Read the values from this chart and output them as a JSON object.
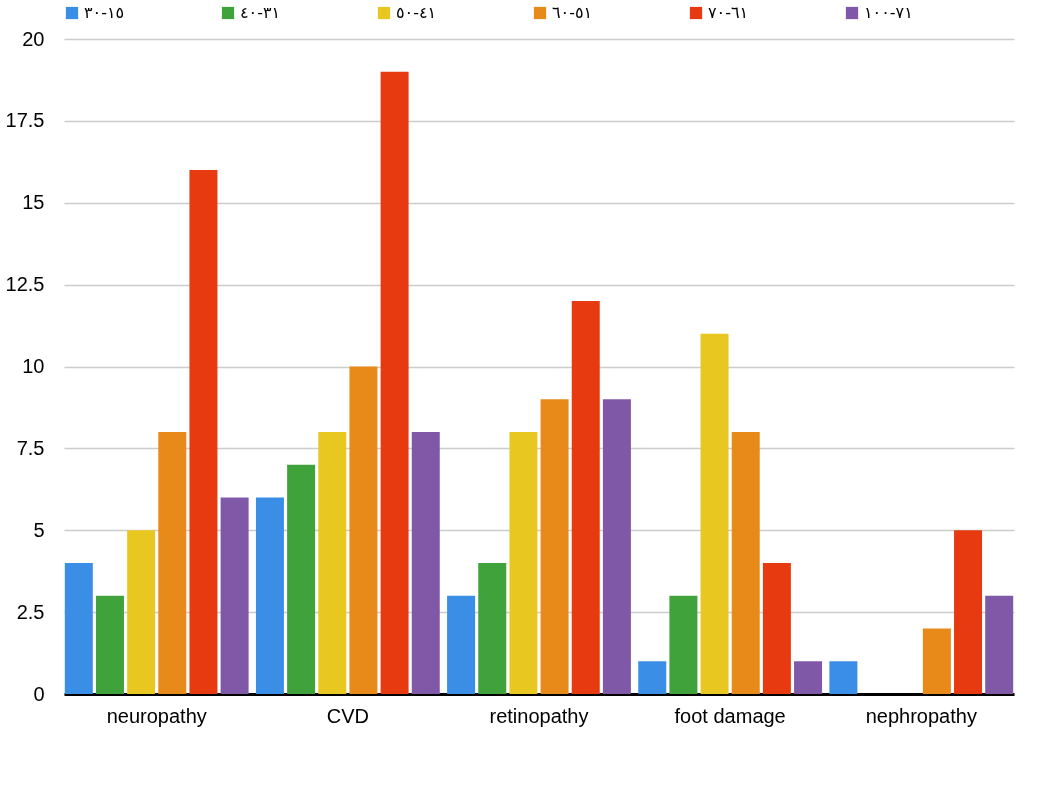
{
  "chart_data": {
    "type": "bar",
    "categories": [
      "neuropathy",
      "CVD",
      "retinopathy",
      "foot damage",
      "nephropathy"
    ],
    "series": [
      {
        "name": "١٥-٣٠",
        "color": "#3a8ee6",
        "values": [
          4,
          6,
          3,
          1,
          1
        ]
      },
      {
        "name": "٣١-٤٠",
        "color": "#3fa23a",
        "values": [
          3,
          7,
          4,
          3,
          0
        ]
      },
      {
        "name": "٤١-٥٠",
        "color": "#e8c820",
        "values": [
          5,
          8,
          8,
          11,
          0
        ]
      },
      {
        "name": "٥١-٦٠",
        "color": "#e88a1a",
        "values": [
          8,
          10,
          9,
          8,
          2
        ]
      },
      {
        "name": "٦١-٧٠",
        "color": "#e83a10",
        "values": [
          16,
          19,
          12,
          4,
          5
        ]
      },
      {
        "name": "٧١-١٠٠",
        "color": "#8058a8",
        "values": [
          6,
          8,
          9,
          1,
          3
        ]
      }
    ],
    "ylim": [
      0,
      20
    ],
    "yticks": [
      0,
      2.5,
      5,
      7.5,
      10,
      12.5,
      15,
      17.5,
      20
    ],
    "grid": "y",
    "legend": "top"
  }
}
